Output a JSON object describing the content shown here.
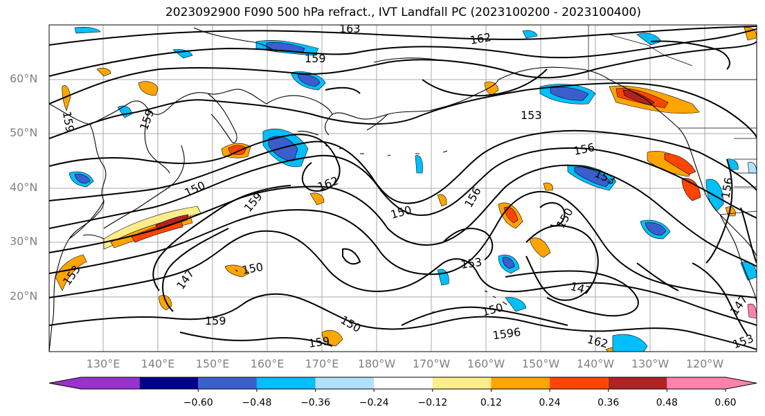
{
  "title": "2023092900 F090 500 hPa refract., IVT Landfall PC (2023100200 - 2023100400)",
  "map": {
    "lat_labels": [
      {
        "text": "60°N",
        "lat": 60
      },
      {
        "text": "50°N",
        "lat": 50
      },
      {
        "text": "40°N",
        "lat": 40
      },
      {
        "text": "30°N",
        "lat": 30
      },
      {
        "text": "20°N",
        "lat": 20
      }
    ],
    "lon_labels": [
      "130°E",
      "140°E",
      "150°E",
      "160°E",
      "170°E",
      "180°W",
      "170°W",
      "160°W",
      "150°W",
      "140°W",
      "130°W",
      "120°W"
    ],
    "contour_labels": [
      "163",
      "162",
      "159",
      "159",
      "153",
      "159",
      "156",
      "150",
      "162",
      "159",
      "150",
      "156",
      "153",
      "147",
      "150",
      "150",
      "153",
      "147",
      "159",
      "150",
      "150",
      "1596",
      "159",
      "162",
      "147",
      "153",
      "156",
      "153"
    ]
  },
  "colorbar": {
    "ticks": [
      "−0.60",
      "−0.48",
      "−0.36",
      "−0.24",
      "−0.12",
      "0.12",
      "0.24",
      "0.36",
      "0.48",
      "0.60"
    ],
    "colors": [
      "#9932cc",
      "#00008b",
      "#3a5fcd",
      "#00bfff",
      "#b0e2ff",
      "#ffffff",
      "#ffec8b",
      "#ffa500",
      "#ff4500",
      "#b22222",
      "#ff82ab"
    ]
  }
}
